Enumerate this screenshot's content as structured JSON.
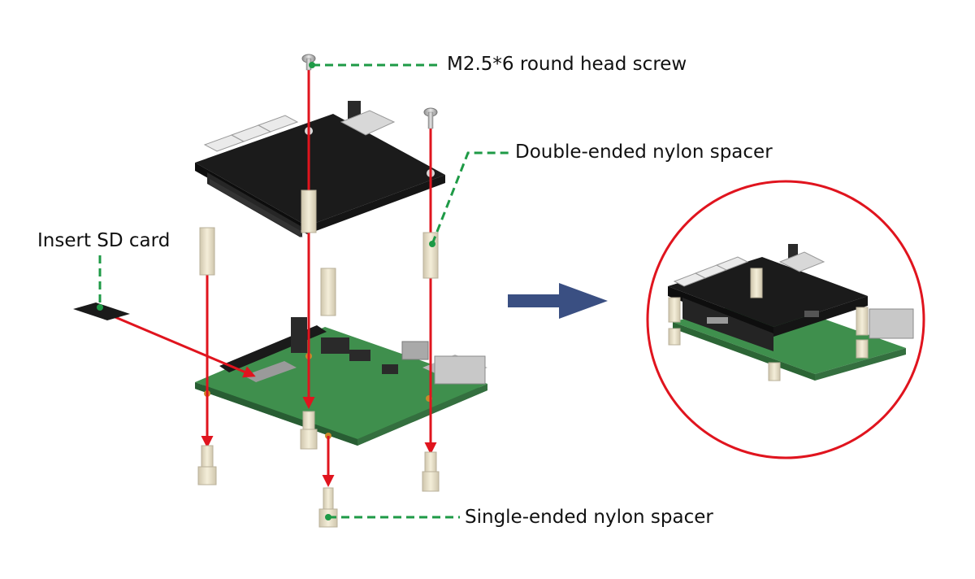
{
  "labels": {
    "screw": "M2.5*6 round head screw",
    "double_spacer": "Double-ended nylon spacer",
    "sd_card": "Insert SD card",
    "single_spacer": "Single-ended nylon spacer"
  },
  "colors": {
    "arrow_red": "#e0141e",
    "leader_green": "#1e9a46",
    "direction_arrow": "#3a4f82",
    "pcb_green": "#3f8f4d",
    "top_board": "#1b1b1b",
    "nylon": "#ece4cc",
    "circle_outline": "#e0141e"
  },
  "icons": {
    "direction": "arrow-right-icon",
    "detail": "magnifier-circle-icon"
  }
}
